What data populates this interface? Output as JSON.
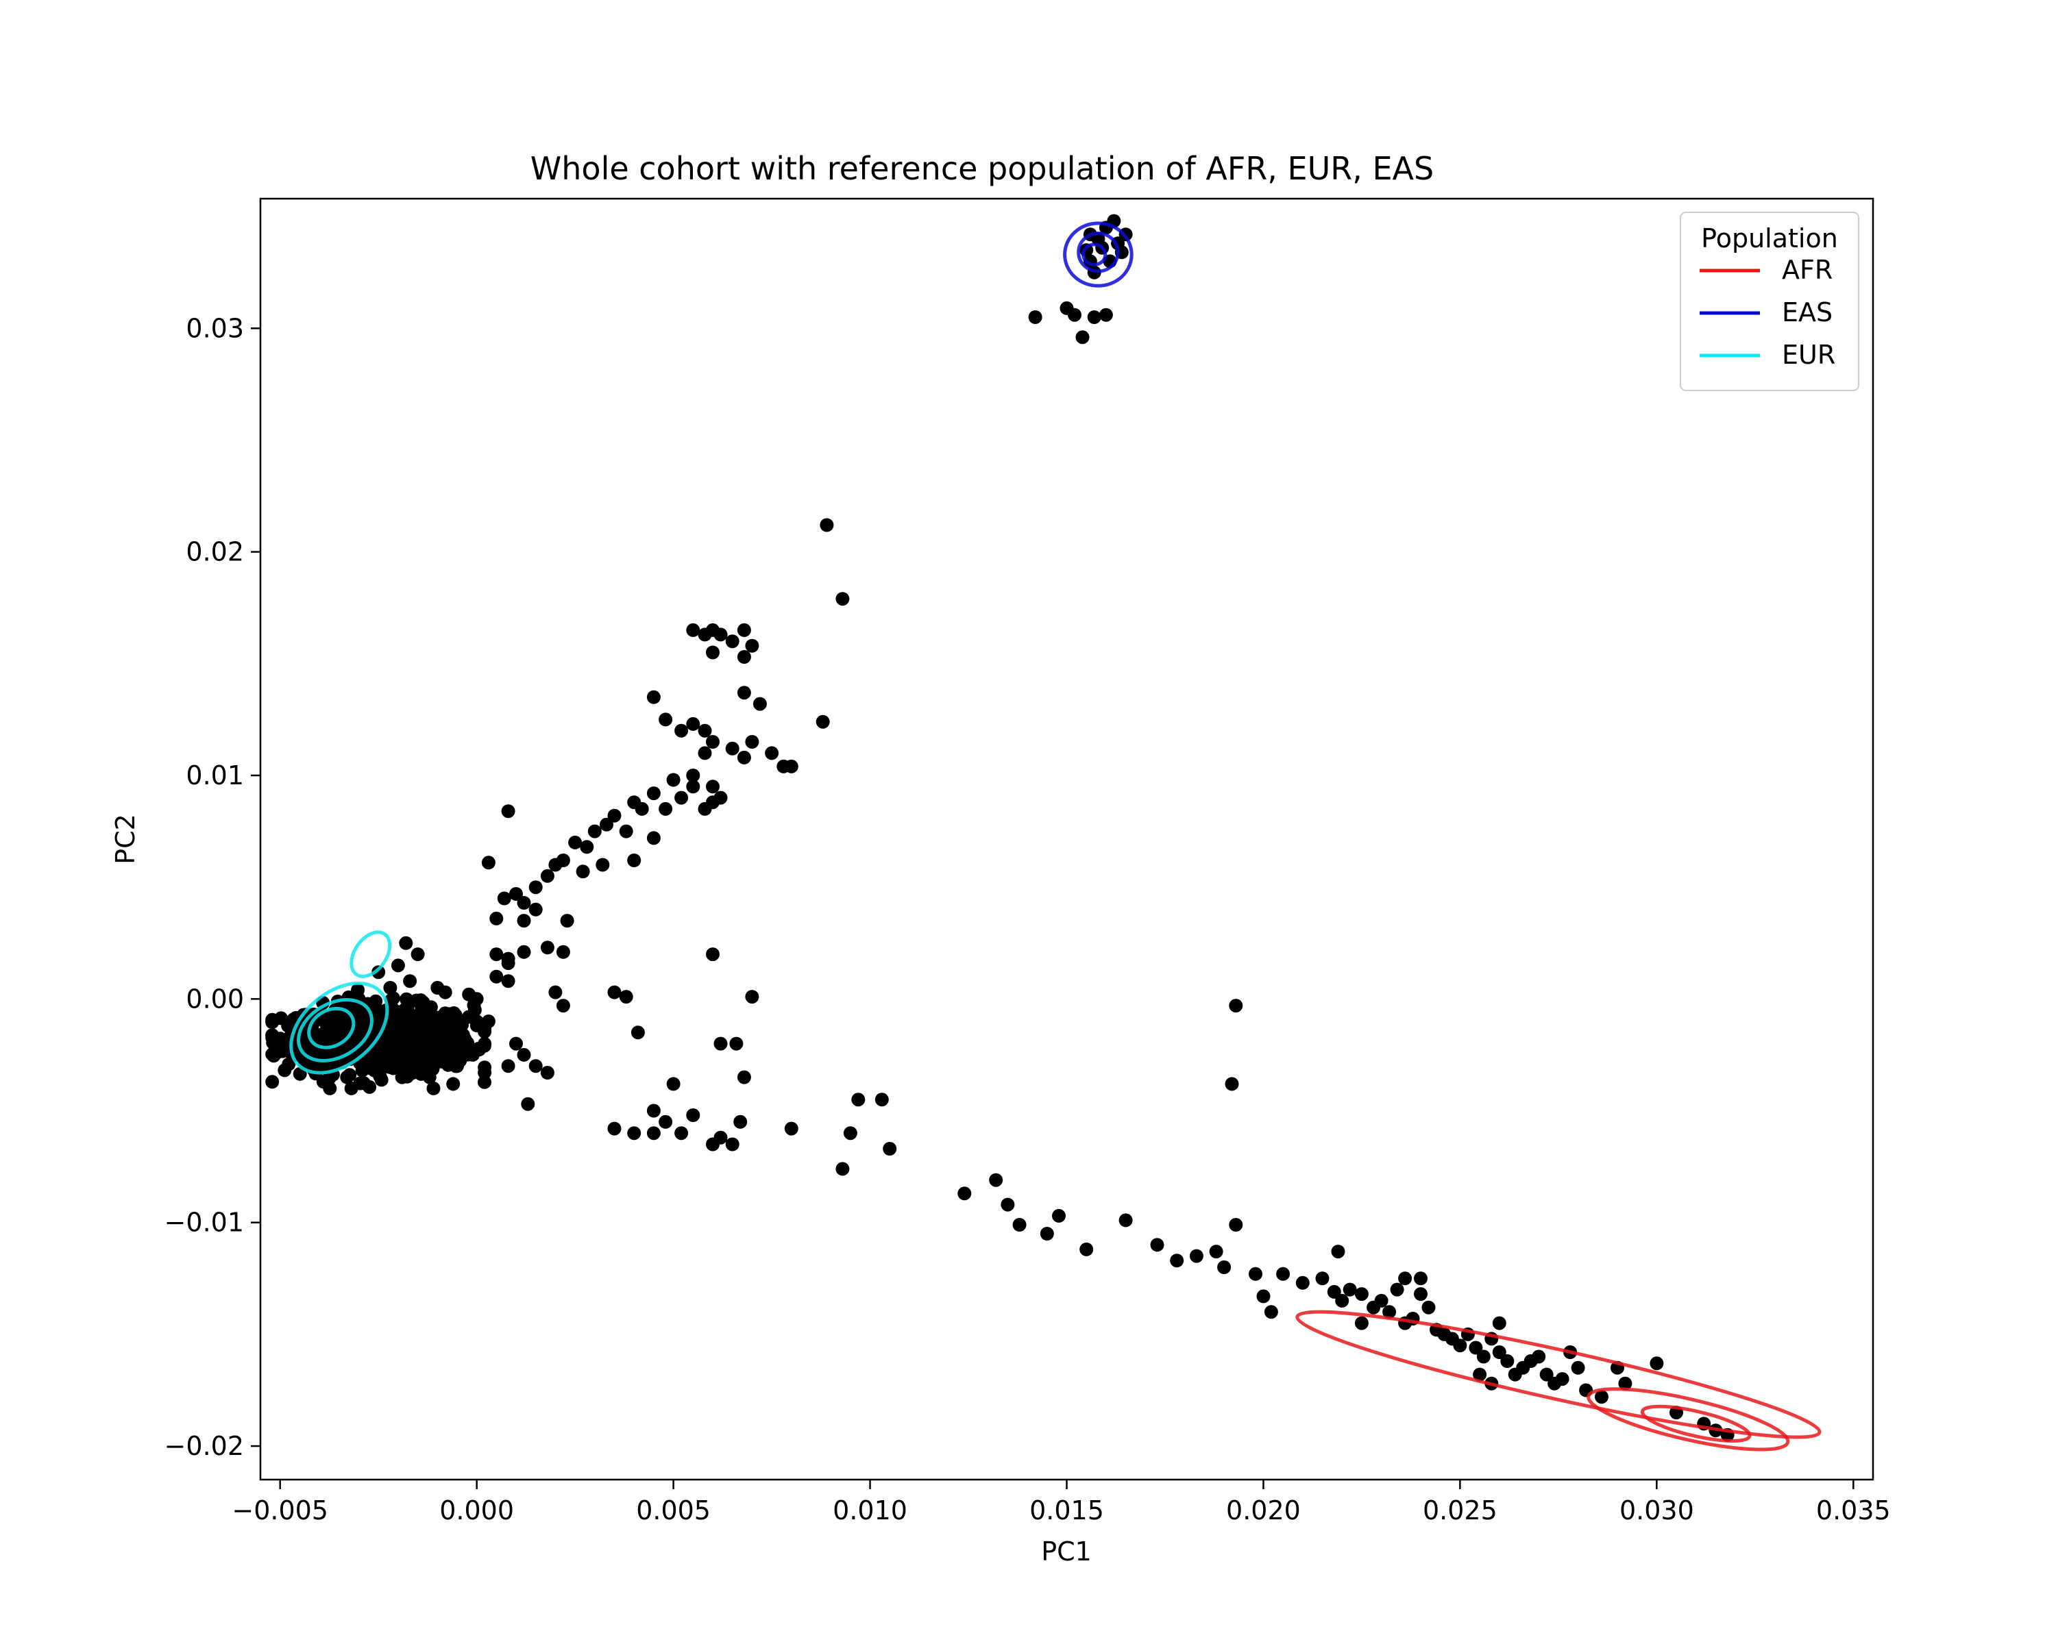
{
  "chart_data": {
    "type": "scatter",
    "title": "Whole cohort with reference population of AFR, EUR, EAS",
    "xlabel": "PC1",
    "ylabel": "PC2",
    "xlim": [
      -0.0055,
      0.0355
    ],
    "ylim": [
      -0.0215,
      0.0358
    ],
    "xticks": [
      -0.005,
      0.0,
      0.005,
      0.01,
      0.015,
      0.02,
      0.025,
      0.03,
      0.035
    ],
    "xtick_labels": [
      "−0.005",
      "0.000",
      "0.005",
      "0.010",
      "0.015",
      "0.020",
      "0.025",
      "0.030",
      "0.035"
    ],
    "yticks": [
      -0.02,
      -0.01,
      0.0,
      0.01,
      0.02,
      0.03
    ],
    "ytick_labels": [
      "−0.02",
      "−0.01",
      "0.00",
      "0.01",
      "0.02",
      "0.03"
    ],
    "grid": false,
    "legend": {
      "title": "Population",
      "placement": "top-right",
      "entries": [
        {
          "label": "AFR",
          "color": "#e8191a"
        },
        {
          "label": "EAS",
          "color": "#0a0ad8"
        },
        {
          "label": "EUR",
          "color": "#11e6ee"
        }
      ]
    },
    "point_color": "#000000",
    "cohort_points": [
      [
        -0.0045,
        -0.001
      ],
      [
        -0.0042,
        -0.0015
      ],
      [
        -0.0038,
        -0.0012
      ],
      [
        -0.0035,
        -0.002
      ],
      [
        -0.0032,
        -0.001
      ],
      [
        -0.003,
        -0.0025
      ],
      [
        -0.0028,
        -0.0015
      ],
      [
        -0.0025,
        -0.0008
      ],
      [
        -0.0022,
        -0.002
      ],
      [
        -0.002,
        -0.0012
      ],
      [
        -0.0018,
        -0.0028
      ],
      [
        -0.0015,
        -0.0018
      ],
      [
        -0.0012,
        -0.001
      ],
      [
        -0.001,
        -0.0022
      ],
      [
        -0.0008,
        -0.0015
      ],
      [
        -0.0005,
        -0.003
      ],
      [
        -0.004,
        -0.003
      ],
      [
        -0.0033,
        -0.0035
      ],
      [
        -0.0026,
        -0.0032
      ],
      [
        -0.0019,
        -0.0035
      ],
      [
        -0.0048,
        -0.0012
      ],
      [
        -0.0044,
        -0.0024
      ],
      [
        -0.0036,
        -0.0005
      ],
      [
        -0.0029,
        -0.0004
      ],
      [
        -0.0021,
        -0.0005
      ],
      [
        -0.0014,
        -0.0004
      ],
      [
        -0.0007,
        -0.0008
      ],
      [
        -0.0003,
        -0.0018
      ],
      [
        -0.0002,
        -0.0008
      ],
      [
        -0.0001,
        -0.0025
      ],
      [
        -0.0039,
        -0.0037
      ],
      [
        -0.0011,
        -0.004
      ],
      [
        -0.0017,
        0.0008
      ],
      [
        -0.002,
        0.0015
      ],
      [
        -0.0025,
        0.0012
      ],
      [
        -0.0018,
        0.0025
      ],
      [
        -0.0015,
        0.002
      ],
      [
        -0.0022,
        0.0005
      ],
      [
        -0.001,
        0.0005
      ],
      [
        -0.003,
        0.0
      ],
      [
        0.0,
        -0.001
      ],
      [
        0.0,
        0.0
      ],
      [
        -0.0008,
        0.0003
      ],
      [
        -0.0012,
        -0.0035
      ],
      [
        -0.0006,
        -0.0038
      ],
      [
        -0.0046,
        -0.0018
      ],
      [
        -0.0041,
        -0.0008
      ],
      [
        -0.0034,
        -0.0027
      ],
      [
        -0.0027,
        -0.0022
      ],
      [
        -0.0023,
        -0.003
      ],
      [
        -0.0016,
        -0.0026
      ],
      [
        -0.0013,
        -0.0031
      ],
      [
        -0.0009,
        -0.0028
      ],
      [
        -0.0004,
        -0.0012
      ],
      [
        -0.0031,
        -0.0017
      ],
      [
        -0.0024,
        -0.0016
      ],
      [
        -0.0037,
        -0.0022
      ],
      [
        -0.0019,
        -0.0007
      ],
      [
        -0.0012,
        -0.0017
      ],
      [
        -0.0006,
        -0.0021
      ],
      [
        0.0005,
        0.002
      ],
      [
        0.0007,
        0.0045
      ],
      [
        0.001,
        0.0047
      ],
      [
        0.0012,
        0.0043
      ],
      [
        0.0015,
        0.004
      ],
      [
        0.0005,
        0.001
      ],
      [
        0.0008,
        0.0018
      ],
      [
        0.0012,
        0.0035
      ],
      [
        0.002,
        0.006
      ],
      [
        0.0025,
        0.007
      ],
      [
        0.003,
        0.0075
      ],
      [
        0.0035,
        0.0082
      ],
      [
        0.004,
        0.0088
      ],
      [
        0.0045,
        0.0092
      ],
      [
        0.005,
        0.0098
      ],
      [
        0.0042,
        0.0085
      ],
      [
        0.0038,
        0.0075
      ],
      [
        0.0028,
        0.0068
      ],
      [
        0.0022,
        0.0062
      ],
      [
        0.0018,
        0.0055
      ],
      [
        0.0015,
        0.005
      ],
      [
        0.0032,
        0.006
      ],
      [
        0.0027,
        0.0057
      ],
      [
        0.0045,
        0.0072
      ],
      [
        0.004,
        0.0062
      ],
      [
        0.0033,
        0.0078
      ],
      [
        0.0048,
        0.0085
      ],
      [
        0.0052,
        0.009
      ],
      [
        0.0055,
        0.0095
      ],
      [
        0.0045,
        0.0135
      ],
      [
        0.0048,
        0.0125
      ],
      [
        0.0052,
        0.012
      ],
      [
        0.0055,
        0.0123
      ],
      [
        0.0058,
        0.012
      ],
      [
        0.006,
        0.0115
      ],
      [
        0.0065,
        0.0112
      ],
      [
        0.007,
        0.0115
      ],
      [
        0.0075,
        0.011
      ],
      [
        0.0078,
        0.0104
      ],
      [
        0.008,
        0.0104
      ],
      [
        0.0068,
        0.0108
      ],
      [
        0.0055,
        0.01
      ],
      [
        0.0058,
        0.011
      ],
      [
        0.006,
        0.0095
      ],
      [
        0.0062,
        0.009
      ],
      [
        0.0058,
        0.0085
      ],
      [
        0.006,
        0.0088
      ],
      [
        0.0055,
        0.0165
      ],
      [
        0.0058,
        0.0163
      ],
      [
        0.006,
        0.0165
      ],
      [
        0.0062,
        0.0163
      ],
      [
        0.0065,
        0.016
      ],
      [
        0.0068,
        0.0165
      ],
      [
        0.007,
        0.0158
      ],
      [
        0.006,
        0.0155
      ],
      [
        0.0068,
        0.0153
      ],
      [
        0.0068,
        0.0137
      ],
      [
        0.0072,
        0.0132
      ],
      [
        0.0088,
        0.0124
      ],
      [
        0.0089,
        0.0212
      ],
      [
        0.0093,
        0.0179
      ],
      [
        0.0008,
        0.0084
      ],
      [
        0.0003,
        0.0061
      ],
      [
        0.0005,
        0.0036
      ],
      [
        0.0012,
        0.0021
      ],
      [
        0.0018,
        0.0023
      ],
      [
        0.002,
        0.0003
      ],
      [
        0.0022,
        0.0021
      ],
      [
        0.0022,
        -0.0003
      ],
      [
        0.0023,
        0.0035
      ],
      [
        0.0008,
        0.0016
      ],
      [
        0.0008,
        0.0008
      ],
      [
        0.0003,
        -0.001
      ],
      [
        0.001,
        -0.002
      ],
      [
        0.0012,
        -0.0025
      ],
      [
        0.0008,
        -0.003
      ],
      [
        0.0015,
        -0.003
      ],
      [
        0.0018,
        -0.0033
      ],
      [
        0.0013,
        -0.0047
      ],
      [
        -0.0002,
        0.0002
      ],
      [
        0.0035,
        0.0003
      ],
      [
        0.0038,
        0.0001
      ],
      [
        0.0041,
        -0.0015
      ],
      [
        0.0045,
        -0.006
      ],
      [
        0.0048,
        -0.0055
      ],
      [
        0.0052,
        -0.006
      ],
      [
        0.0055,
        -0.0052
      ],
      [
        0.006,
        -0.0065
      ],
      [
        0.0062,
        -0.0062
      ],
      [
        0.0065,
        -0.0065
      ],
      [
        0.0067,
        -0.0055
      ],
      [
        0.0062,
        -0.002
      ],
      [
        0.0066,
        -0.002
      ],
      [
        0.0068,
        -0.0035
      ],
      [
        0.007,
        0.0001
      ],
      [
        0.006,
        0.002
      ],
      [
        0.005,
        -0.0038
      ],
      [
        0.0045,
        -0.005
      ],
      [
        0.004,
        -0.006
      ],
      [
        0.0035,
        -0.0058
      ],
      [
        0.008,
        -0.0058
      ],
      [
        0.0093,
        -0.0076
      ],
      [
        0.0095,
        -0.006
      ],
      [
        0.0097,
        -0.0045
      ],
      [
        0.0103,
        -0.0045
      ],
      [
        0.0105,
        -0.0067
      ],
      [
        0.0124,
        -0.0087
      ],
      [
        0.0132,
        -0.0081
      ],
      [
        0.0135,
        -0.0092
      ],
      [
        0.0138,
        -0.0101
      ],
      [
        0.0145,
        -0.0105
      ],
      [
        0.0148,
        -0.0097
      ],
      [
        0.0155,
        -0.0112
      ],
      [
        0.0165,
        -0.0099
      ],
      [
        0.0173,
        -0.011
      ],
      [
        0.0178,
        -0.0117
      ],
      [
        0.0183,
        -0.0115
      ],
      [
        0.0188,
        -0.0113
      ],
      [
        0.019,
        -0.012
      ],
      [
        0.0193,
        -0.0101
      ],
      [
        0.0198,
        -0.0123
      ],
      [
        0.02,
        -0.0133
      ],
      [
        0.0202,
        -0.014
      ],
      [
        0.0205,
        -0.0123
      ],
      [
        0.0193,
        -0.0003
      ],
      [
        0.0192,
        -0.0038
      ],
      [
        0.021,
        -0.0127
      ],
      [
        0.0215,
        -0.0125
      ],
      [
        0.0218,
        -0.0131
      ],
      [
        0.022,
        -0.0135
      ],
      [
        0.0222,
        -0.013
      ],
      [
        0.0225,
        -0.0132
      ],
      [
        0.0228,
        -0.0138
      ],
      [
        0.023,
        -0.0135
      ],
      [
        0.0232,
        -0.014
      ],
      [
        0.0234,
        -0.013
      ],
      [
        0.0236,
        -0.0145
      ],
      [
        0.0238,
        -0.0143
      ],
      [
        0.024,
        -0.0132
      ],
      [
        0.0242,
        -0.0138
      ],
      [
        0.0244,
        -0.0148
      ],
      [
        0.0246,
        -0.015
      ],
      [
        0.0248,
        -0.0152
      ],
      [
        0.025,
        -0.0155
      ],
      [
        0.0252,
        -0.015
      ],
      [
        0.0254,
        -0.0156
      ],
      [
        0.0256,
        -0.016
      ],
      [
        0.0258,
        -0.0152
      ],
      [
        0.026,
        -0.0158
      ],
      [
        0.0262,
        -0.0162
      ],
      [
        0.0264,
        -0.0168
      ],
      [
        0.0266,
        -0.0165
      ],
      [
        0.0268,
        -0.0162
      ],
      [
        0.027,
        -0.016
      ],
      [
        0.0272,
        -0.0168
      ],
      [
        0.0274,
        -0.0172
      ],
      [
        0.0276,
        -0.017
      ],
      [
        0.0278,
        -0.0158
      ],
      [
        0.028,
        -0.0165
      ],
      [
        0.0282,
        -0.0175
      ],
      [
        0.0286,
        -0.0178
      ],
      [
        0.029,
        -0.0165
      ],
      [
        0.0292,
        -0.0172
      ],
      [
        0.03,
        -0.0163
      ],
      [
        0.0305,
        -0.0185
      ],
      [
        0.0312,
        -0.019
      ],
      [
        0.0315,
        -0.0193
      ],
      [
        0.0318,
        -0.0195
      ],
      [
        0.0255,
        -0.0168
      ],
      [
        0.0258,
        -0.0172
      ],
      [
        0.0236,
        -0.0125
      ],
      [
        0.0225,
        -0.0145
      ],
      [
        0.0219,
        -0.0113
      ],
      [
        0.026,
        -0.0145
      ],
      [
        0.024,
        -0.0125
      ],
      [
        0.0142,
        0.0305
      ],
      [
        0.015,
        0.0309
      ],
      [
        0.0152,
        0.0306
      ],
      [
        0.0154,
        0.0296
      ],
      [
        0.0157,
        0.0305
      ],
      [
        0.016,
        0.0306
      ],
      [
        0.0156,
        0.033
      ],
      [
        0.0158,
        0.034
      ],
      [
        0.016,
        0.0345
      ],
      [
        0.0162,
        0.0348
      ],
      [
        0.0155,
        0.0335
      ],
      [
        0.0157,
        0.0325
      ],
      [
        0.0163,
        0.0338
      ],
      [
        0.0165,
        0.0342
      ],
      [
        0.0159,
        0.0336
      ],
      [
        0.0161,
        0.033
      ],
      [
        0.0156,
        0.0342
      ],
      [
        0.0164,
        0.0334
      ]
    ],
    "dense_clusters": [
      {
        "center": [
          -0.0025,
          -0.0018
        ],
        "spread": [
          0.0016,
          0.001
        ],
        "count": 700
      }
    ],
    "density_contours": [
      {
        "population": "AFR",
        "color": "#e8191a",
        "levels": [
          {
            "center": [
              0.0275,
              -0.0168
            ],
            "rx": 0.0068,
            "ry": 0.0011,
            "angle_deg": 12.5
          },
          {
            "center": [
              0.0308,
              -0.0188
            ],
            "rx": 0.0026,
            "ry": 0.0009,
            "angle_deg": 13
          },
          {
            "center": [
              0.031,
              -0.019
            ],
            "rx": 0.0014,
            "ry": 0.00055,
            "angle_deg": 13
          }
        ]
      },
      {
        "population": "EAS",
        "color": "#0a0ad8",
        "levels": [
          {
            "center": [
              0.0158,
              0.0333
            ],
            "rx": 0.00085,
            "ry": 0.0014,
            "angle_deg": 0
          },
          {
            "center": [
              0.0158,
              0.0334
            ],
            "rx": 0.0005,
            "ry": 0.00085,
            "angle_deg": 0
          },
          {
            "center": [
              0.0157,
              0.0333
            ],
            "rx": 0.00028,
            "ry": 0.00045,
            "angle_deg": 0
          }
        ]
      },
      {
        "population": "EUR",
        "color": "#11e6ee",
        "levels": [
          {
            "center": [
              -0.0035,
              -0.0013
            ],
            "rx": 0.0014,
            "ry": 0.0016,
            "angle_deg": -40
          },
          {
            "center": [
              -0.0036,
              -0.0014
            ],
            "rx": 0.001,
            "ry": 0.0012,
            "angle_deg": -30
          },
          {
            "center": [
              -0.0037,
              -0.0013
            ],
            "rx": 0.0006,
            "ry": 0.0008,
            "angle_deg": -30
          },
          {
            "center": [
              -0.0027,
              0.002
            ],
            "rx": 0.0004,
            "ry": 0.0011,
            "angle_deg": 35
          }
        ]
      }
    ]
  }
}
